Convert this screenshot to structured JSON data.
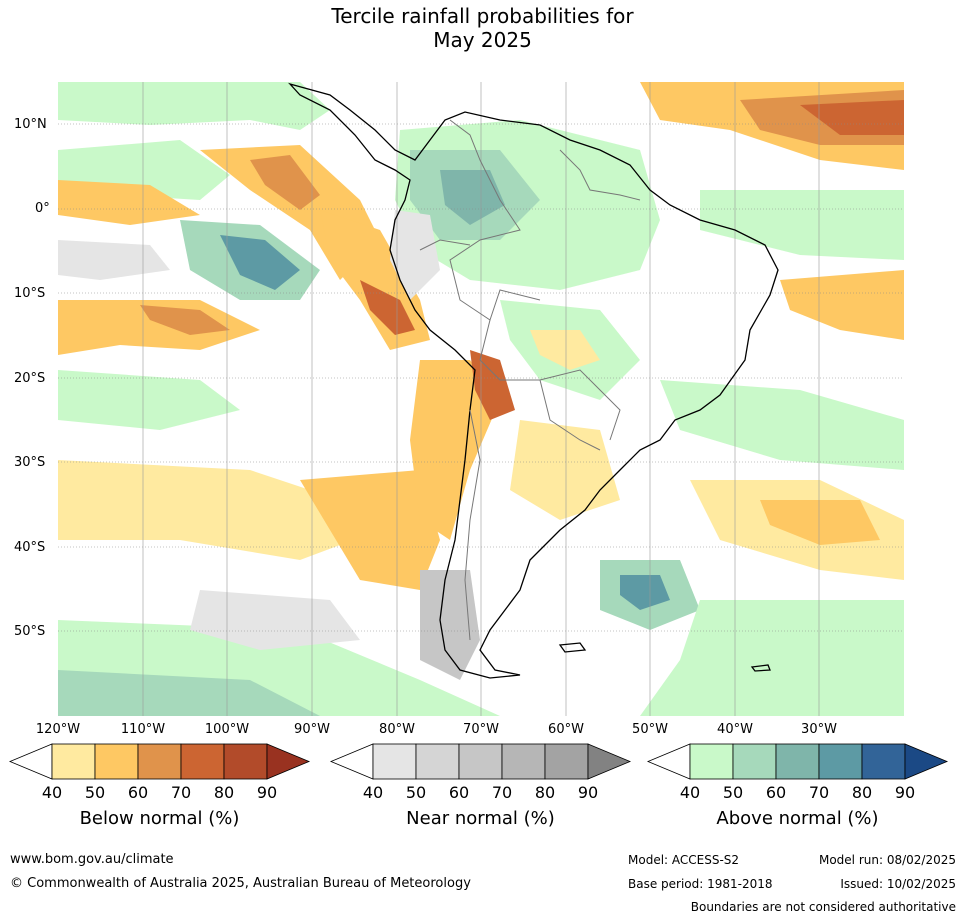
{
  "title_line1": "Tercile rainfall probabilities for",
  "title_line2": "May 2025",
  "map": {
    "lat_labels": [
      "10°N",
      "0°",
      "10°S",
      "20°S",
      "30°S",
      "40°S",
      "50°S"
    ],
    "lon_labels": [
      "120°W",
      "110°W",
      "100°W",
      "90°W",
      "80°W",
      "70°W",
      "60°W",
      "50°W",
      "40°W",
      "30°W"
    ],
    "lat_range": [
      -60,
      15
    ],
    "lon_range": [
      -120,
      -20
    ]
  },
  "legend": {
    "below": {
      "title": "Below normal (%)",
      "ticks": [
        "40",
        "50",
        "60",
        "70",
        "80",
        "90"
      ],
      "colors": [
        "#ffffff",
        "#ffeaa0",
        "#fec863",
        "#e0934b",
        "#cc6532",
        "#b24b2a",
        "#993220"
      ]
    },
    "near": {
      "title": "Near normal (%)",
      "ticks": [
        "40",
        "50",
        "60",
        "70",
        "80",
        "90"
      ],
      "colors": [
        "#ffffff",
        "#e5e5e5",
        "#d5d5d5",
        "#c6c6c6",
        "#b6b6b6",
        "#a3a3a3",
        "#828282"
      ]
    },
    "above": {
      "title": "Above normal (%)",
      "ticks": [
        "40",
        "50",
        "60",
        "70",
        "80",
        "90"
      ],
      "colors": [
        "#ffffff",
        "#c9f9c9",
        "#a6d9bb",
        "#7fb5aa",
        "#5d9aa4",
        "#326498",
        "#1b4985"
      ]
    }
  },
  "footer": {
    "url": "www.bom.gov.au/climate",
    "copyright": "© Commonwealth of Australia 2025, Australian Bureau of Meteorology",
    "model": "Model: ACCESS-S2",
    "model_run": "Model run: 08/02/2025",
    "base_period": "Base period: 1981-2018",
    "issued": "Issued: 10/02/2025",
    "disclaimer": "Boundaries are not considered authoritative"
  }
}
